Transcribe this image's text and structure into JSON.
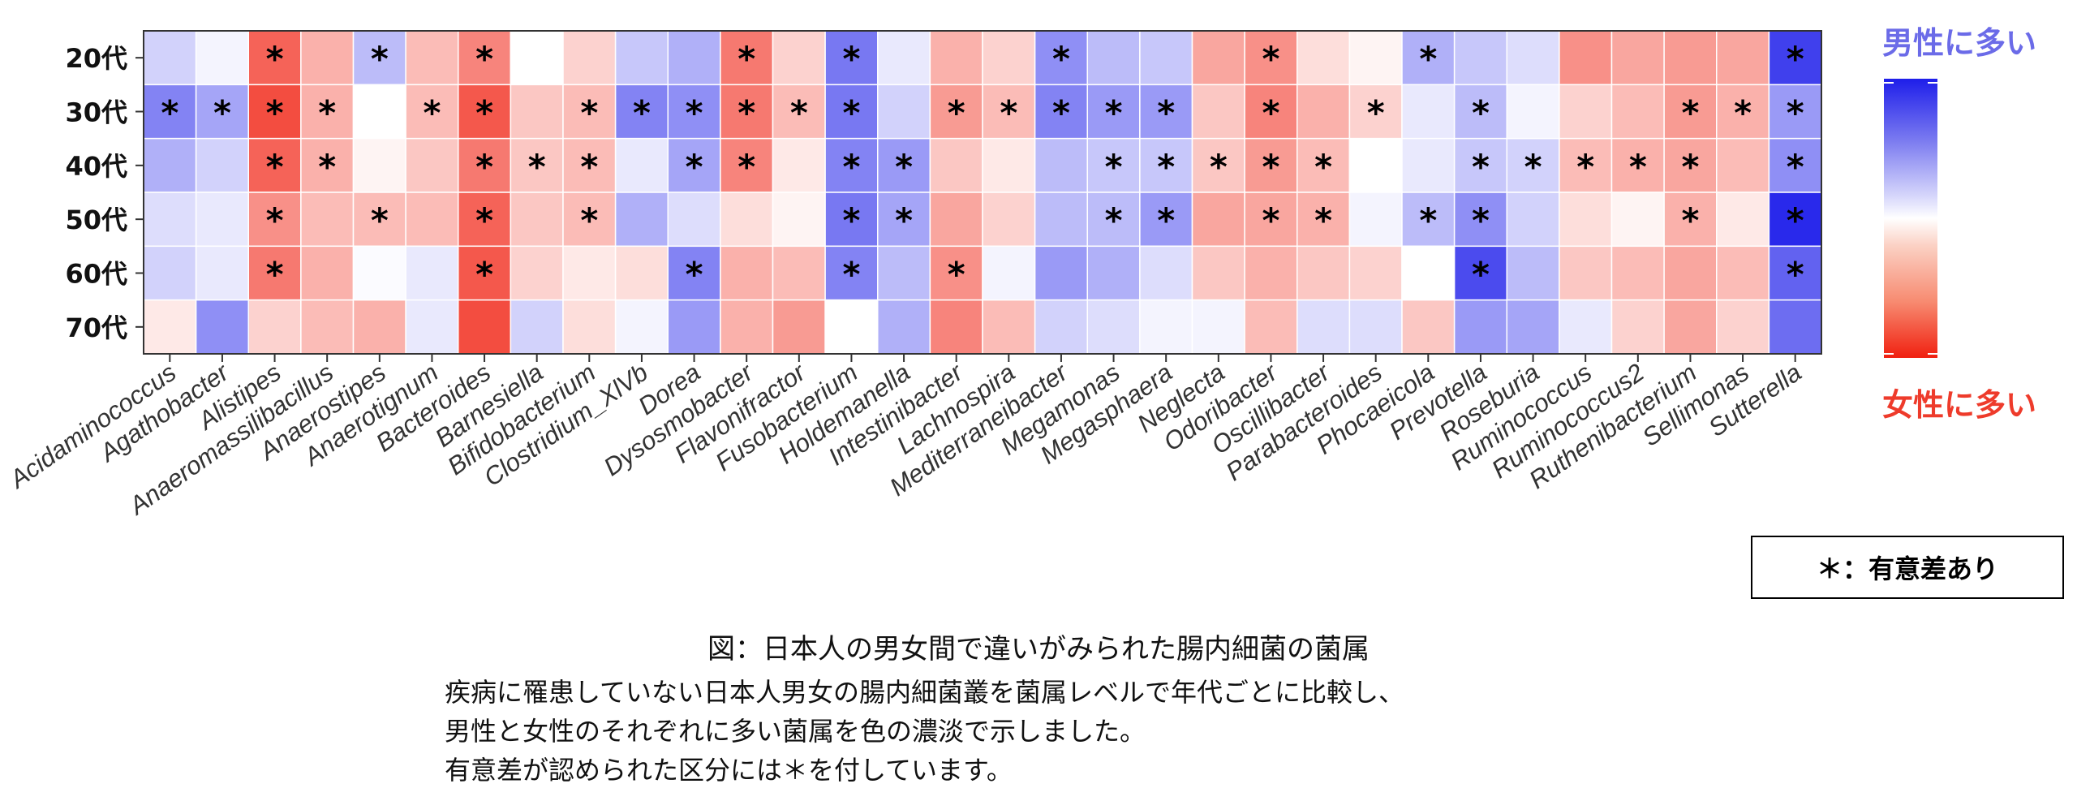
{
  "chart_data": {
    "type": "heatmap",
    "rows": [
      "20代",
      "30代",
      "40代",
      "50代",
      "60代",
      "70代"
    ],
    "columns": [
      "Acidaminococcus",
      "Agathobacter",
      "Alistipes",
      "Anaeromassilibacillus",
      "Anaerostipes",
      "Anaerotignum",
      "Bacteroides",
      "Barnesiella",
      "Bifidobacterium",
      "Clostridium_XlVb",
      "Dorea",
      "Dysosmobacter",
      "Flavonifractor",
      "Fusobacterium",
      "Holdemanella",
      "Intestinibacter",
      "Lachnospira",
      "Mediterraneibacter",
      "Megamonas",
      "Megasphaera",
      "Neglecta",
      "Odoribacter",
      "Oscillibacter",
      "Parabacteroides",
      "Phocaeicola",
      "Prevotella",
      "Roseburia",
      "Ruminococcus",
      "Ruminococcus2",
      "Ruthenibacterium",
      "Sellimonas",
      "Sutterella"
    ],
    "value_scale_note": "positive = 男性に多い (blue), negative = 女性に多い (red)",
    "values": [
      [
        0.2,
        0.05,
        -0.7,
        -0.35,
        0.3,
        -0.3,
        -0.55,
        0.0,
        -0.2,
        0.25,
        0.35,
        -0.6,
        -0.2,
        0.6,
        0.1,
        -0.35,
        -0.2,
        0.5,
        0.3,
        0.25,
        -0.4,
        -0.5,
        -0.15,
        -0.05,
        0.35,
        0.25,
        0.15,
        -0.5,
        -0.4,
        -0.45,
        -0.4,
        0.85
      ],
      [
        0.55,
        0.4,
        -0.8,
        -0.35,
        0.0,
        -0.3,
        -0.75,
        -0.25,
        -0.3,
        0.55,
        0.5,
        -0.6,
        -0.3,
        0.6,
        0.2,
        -0.45,
        -0.3,
        0.55,
        0.45,
        0.45,
        -0.25,
        -0.55,
        -0.35,
        -0.2,
        0.1,
        0.3,
        0.05,
        -0.2,
        -0.3,
        -0.45,
        -0.35,
        0.45
      ],
      [
        0.35,
        0.2,
        -0.7,
        -0.35,
        -0.05,
        -0.25,
        -0.6,
        -0.25,
        -0.3,
        0.1,
        0.4,
        -0.55,
        -0.1,
        0.55,
        0.45,
        -0.25,
        -0.1,
        0.3,
        0.25,
        0.25,
        -0.25,
        -0.45,
        -0.3,
        0.0,
        0.1,
        0.25,
        0.2,
        -0.3,
        -0.35,
        -0.4,
        -0.3,
        0.5
      ],
      [
        0.15,
        0.1,
        -0.5,
        -0.3,
        -0.3,
        -0.3,
        -0.7,
        -0.25,
        -0.3,
        0.35,
        0.15,
        -0.15,
        -0.05,
        0.6,
        0.4,
        -0.4,
        -0.2,
        0.3,
        0.3,
        0.45,
        -0.4,
        -0.4,
        -0.35,
        0.05,
        0.3,
        0.5,
        0.2,
        -0.15,
        -0.05,
        -0.35,
        -0.1,
        0.95
      ],
      [
        0.2,
        0.1,
        -0.6,
        -0.35,
        0.02,
        0.1,
        -0.75,
        -0.2,
        -0.1,
        -0.15,
        0.55,
        -0.35,
        -0.3,
        0.55,
        0.3,
        -0.5,
        0.05,
        0.45,
        0.35,
        0.15,
        -0.25,
        -0.35,
        -0.25,
        -0.2,
        0.0,
        0.8,
        0.3,
        -0.25,
        -0.3,
        -0.4,
        -0.3,
        0.7
      ],
      [
        -0.1,
        0.5,
        -0.2,
        -0.3,
        -0.35,
        0.1,
        -0.8,
        0.2,
        -0.15,
        0.05,
        0.45,
        -0.35,
        -0.45,
        0.0,
        0.35,
        -0.55,
        -0.3,
        0.2,
        0.15,
        0.05,
        0.05,
        -0.3,
        0.15,
        0.15,
        -0.25,
        0.45,
        0.4,
        0.1,
        -0.2,
        -0.4,
        -0.2,
        0.65
      ]
    ],
    "significant_marker": "*",
    "significant": [
      [
        "Alistipes",
        "Anaerostipes",
        "Bacteroides",
        "Dysosmobacter",
        "Fusobacterium",
        "Mediterraneibacter",
        "Odoribacter",
        "Phocaeicola",
        "Sutterella"
      ],
      [
        "Acidaminococcus",
        "Agathobacter",
        "Alistipes",
        "Anaeromassilibacillus",
        "Anaerotignum",
        "Bacteroides",
        "Bifidobacterium",
        "Clostridium_XlVb",
        "Dorea",
        "Dysosmobacter",
        "Flavonifractor",
        "Fusobacterium",
        "Intestinibacter",
        "Lachnospira",
        "Mediterraneibacter",
        "Megamonas",
        "Megasphaera",
        "Odoribacter",
        "Parabacteroides",
        "Prevotella",
        "Ruthenibacterium",
        "Sellimonas",
        "Sutterella"
      ],
      [
        "Alistipes",
        "Anaeromassilibacillus",
        "Bacteroides",
        "Barnesiella",
        "Bifidobacterium",
        "Dorea",
        "Dysosmobacter",
        "Fusobacterium",
        "Holdemanella",
        "Megamonas",
        "Megasphaera",
        "Neglecta",
        "Odoribacter",
        "Oscillibacter",
        "Prevotella",
        "Roseburia",
        "Ruminococcus",
        "Ruminococcus2",
        "Ruthenibacterium",
        "Sutterella"
      ],
      [
        "Alistipes",
        "Anaerostipes",
        "Bacteroides",
        "Bifidobacterium",
        "Fusobacterium",
        "Holdemanella",
        "Megamonas",
        "Megasphaera",
        "Odoribacter",
        "Oscillibacter",
        "Phocaeicola",
        "Prevotella",
        "Ruthenibacterium",
        "Sutterella"
      ],
      [
        "Alistipes",
        "Bacteroides",
        "Dorea",
        "Fusobacterium",
        "Intestinibacter",
        "Prevotella",
        "Sutterella"
      ],
      []
    ],
    "color_scale": {
      "high": "#1e1eea",
      "mid": "#ffffff",
      "low": "#f02010"
    }
  },
  "legend": {
    "male_label": "男性に多い",
    "female_label": "女性に多い",
    "male_color": "#6b6be8",
    "female_color": "#ee3b2b",
    "significance_label": "＊：有意差あり"
  },
  "caption": {
    "title": "図：日本人の男女間で違いがみられた腸内細菌の菌属",
    "lines": [
      "疾病に罹患していない日本人男女の腸内細菌叢を菌属レベルで年代ごとに比較し、",
      "男性と女性のそれぞれに多い菌属を色の濃淡で示しました。",
      "有意差が認められた区分には＊を付しています。"
    ]
  }
}
